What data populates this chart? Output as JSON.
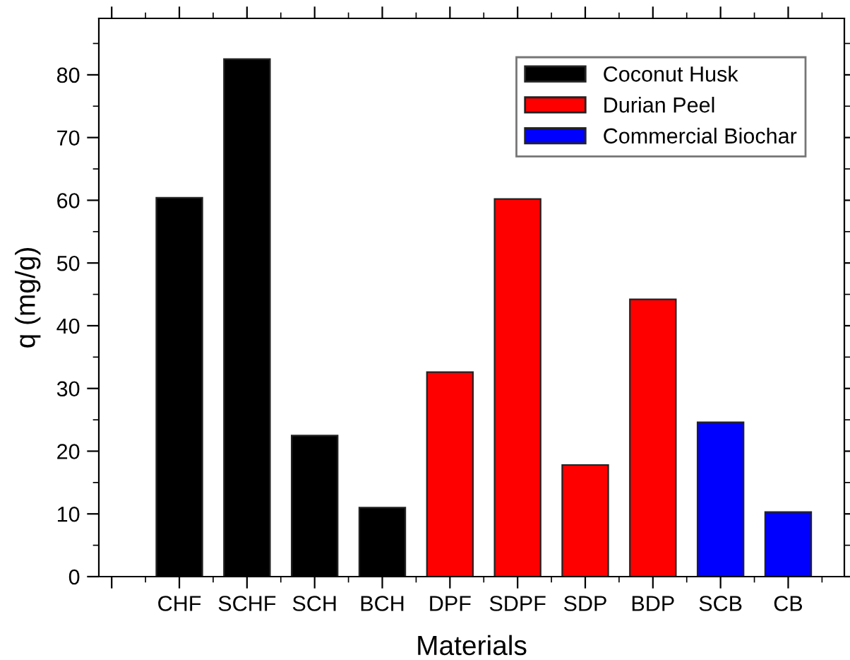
{
  "chart_data": {
    "type": "bar",
    "xlabel": "Materials",
    "ylabel": "q (mg/g)",
    "categories": [
      null,
      "CHF",
      "SCHF",
      "SCH",
      "BCH",
      "DPF",
      "SDPF",
      "SDP",
      "BDP",
      "SCB",
      "CB"
    ],
    "stacked": true,
    "series": [
      {
        "name": "Coconut Husk",
        "color": "#000000",
        "values": [
          null,
          60.4,
          82.5,
          22.5,
          11.0,
          null,
          null,
          null,
          null,
          null,
          null
        ]
      },
      {
        "name": "Durian Peel",
        "color": "#ff0000",
        "values": [
          null,
          null,
          null,
          null,
          null,
          32.6,
          60.2,
          17.8,
          44.2,
          null,
          null
        ]
      },
      {
        "name": "Commercial Biochar",
        "color": "#0000ff",
        "values": [
          null,
          null,
          null,
          null,
          null,
          null,
          null,
          null,
          null,
          24.6,
          10.3
        ]
      }
    ],
    "ylim": [
      0,
      89
    ],
    "yticks": [
      0,
      10,
      20,
      30,
      40,
      50,
      60,
      70,
      80
    ],
    "legend": "top right",
    "grid": false
  }
}
